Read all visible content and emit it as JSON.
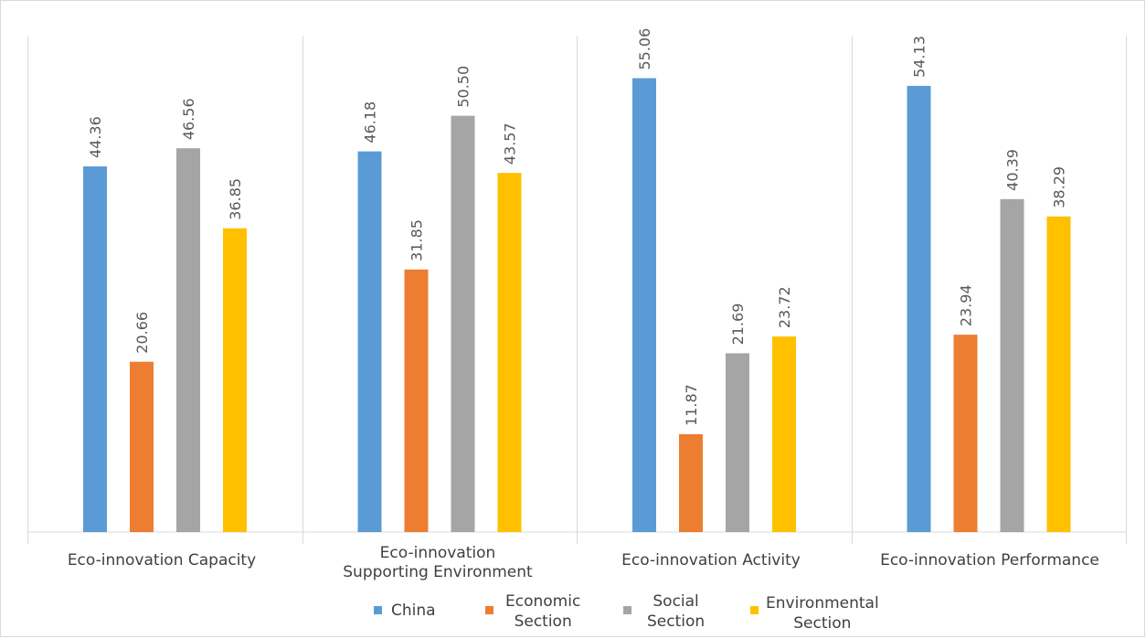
{
  "chart_data": {
    "type": "bar",
    "categories": [
      [
        "Eco-innovation Capacity"
      ],
      [
        "Eco-innovation",
        "Supporting Environment"
      ],
      [
        "Eco-innovation Activity"
      ],
      [
        "Eco-innovation Performance"
      ]
    ],
    "series": [
      {
        "name": "China",
        "legend_lines": [
          "China"
        ],
        "color": "#5b9bd5",
        "values": [
          44.36,
          46.18,
          55.06,
          54.13
        ],
        "labels": [
          "44.36",
          "46.18",
          "55.06",
          "54.13"
        ]
      },
      {
        "name": "Economic Section",
        "legend_lines": [
          "Economic",
          "Section"
        ],
        "color": "#ed7d31",
        "values": [
          20.66,
          31.85,
          11.87,
          23.94
        ],
        "labels": [
          "20.66",
          "31.85",
          "11.87",
          "23.94"
        ]
      },
      {
        "name": "Social Section",
        "legend_lines": [
          "Social",
          "Section"
        ],
        "color": "#a5a5a5",
        "values": [
          46.56,
          50.5,
          21.69,
          40.39
        ],
        "labels": [
          "46.56",
          "50.50",
          "21.69",
          "40.39"
        ]
      },
      {
        "name": "Environmental Section",
        "legend_lines": [
          "Environmental",
          "Section"
        ],
        "color": "#ffc000",
        "values": [
          36.85,
          43.57,
          23.72,
          38.29
        ],
        "labels": [
          "36.85",
          "43.57",
          "23.72",
          "38.29"
        ]
      }
    ],
    "ylim": [
      0,
      60
    ],
    "grid": false,
    "category_dividers": true,
    "legend_position": "bottom",
    "data_labels": "rotated-vertical"
  }
}
